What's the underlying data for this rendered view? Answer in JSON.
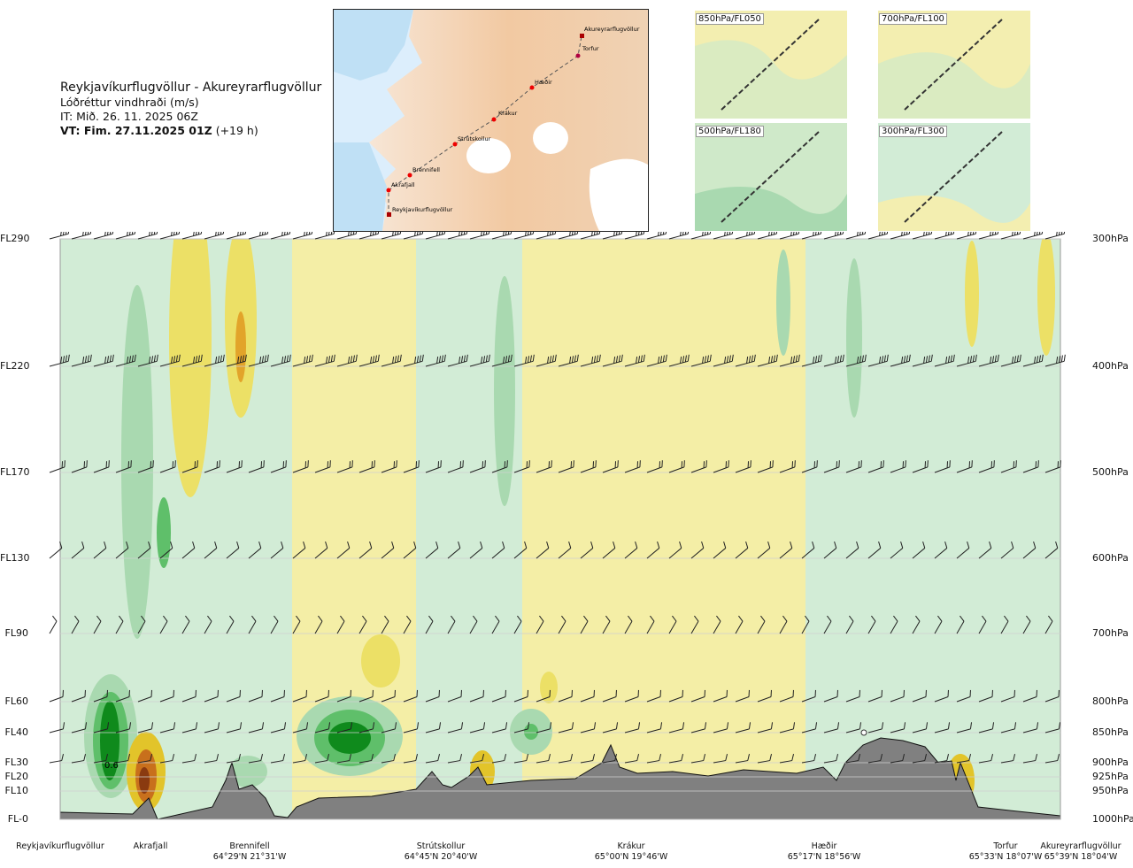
{
  "header": {
    "route": "Reykjavíkurflugvöllur - Akureyrarflugvöllur",
    "variable": "Lóðréttur vindhraði (m/s)",
    "it": "IT: Mið. 26. 11. 2025 06Z",
    "vt_bold": "VT: Fim. 27.11.2025 01Z",
    "vt_offset": "(+19 h)"
  },
  "map": {
    "places": [
      "Akureyrarflugvöllur",
      "Torfur",
      "Hæðir",
      "Krákur",
      "Strútskollur",
      "Brennifell",
      "Akrafjall",
      "Reykjavíkurflugvöllur"
    ]
  },
  "insets": [
    "850hPa/FL050",
    "700hPa/FL100",
    "500hPa/FL180",
    "300hPa/FL300"
  ],
  "colors": {
    "strong_up": "#0f8a1c",
    "up": "#5fbf6a",
    "weak_up": "#a9d9b0",
    "faint_up": "#d2ecd6",
    "neutral": "#fbfbe8",
    "faint_down": "#f4eea6",
    "down": "#ece066",
    "strong_down": "#e2c42a",
    "very_strong_down": "#c8701c",
    "extreme_down": "#8a3a10",
    "terrain": "#808080"
  },
  "chart_data": {
    "type": "heatmap",
    "description_of_axes": "cross-section along route",
    "left_axis_levels": [
      "FL290",
      "FL220",
      "FL170",
      "FL130",
      "FL90",
      "FL60",
      "FL40",
      "FL30",
      "FL20",
      "FL10",
      "FL-0"
    ],
    "right_axis_levels": [
      "300hPa",
      "400hPa",
      "500hPa",
      "600hPa",
      "700hPa",
      "800hPa",
      "850hPa",
      "900hPa",
      "925hPa",
      "950hPa",
      "1000hPa"
    ],
    "annotation": "0.6",
    "waypoints": [
      {
        "name": "Reykjavíkurflugvöllur",
        "coord": ""
      },
      {
        "name": "Akrafjall",
        "coord": ""
      },
      {
        "name": "Brennifell",
        "coord": "64°29'N 21°31'W"
      },
      {
        "name": "Strútskollur",
        "coord": "64°45'N 20°40'W"
      },
      {
        "name": "Krákur",
        "coord": "65°00'N 19°46'W"
      },
      {
        "name": "Hæðir",
        "coord": "65°17'N 18°56'W"
      },
      {
        "name": "Torfur",
        "coord": "65°33'N 18°07'W"
      },
      {
        "name": "Akureyrarflugvöllur",
        "coord": "65°39'N 18°04'W"
      }
    ]
  }
}
